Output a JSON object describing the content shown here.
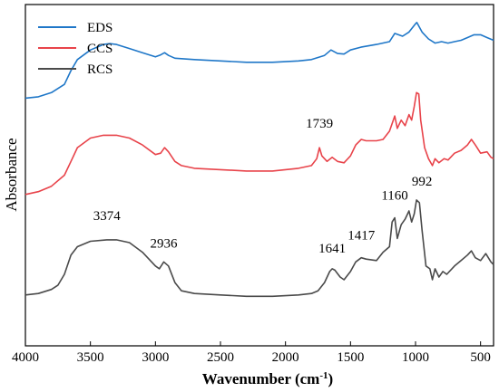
{
  "chart_data": {
    "type": "line",
    "xlabel": "Wavenumber (cm",
    "xlabel_sup": "-1",
    "xlabel_tail": ")",
    "ylabel": "Absorbance",
    "xlim": [
      4000,
      400
    ],
    "x_ticks": [
      4000,
      3500,
      3000,
      2500,
      2000,
      1500,
      1000,
      500
    ],
    "x_tick_labels": [
      "4000",
      "3500",
      "3000",
      "2500",
      "2000",
      "1500",
      "1000",
      "500"
    ],
    "y_ticks_labeled": false,
    "grid": false,
    "legend_position": "top-left",
    "series": [
      {
        "name": "EDS",
        "color": "#1f77c8",
        "points": [
          [
            4000,
            0.78
          ],
          [
            3900,
            0.785
          ],
          [
            3800,
            0.8
          ],
          [
            3700,
            0.83
          ],
          [
            3650,
            0.88
          ],
          [
            3600,
            0.92
          ],
          [
            3500,
            0.955
          ],
          [
            3400,
            0.975
          ],
          [
            3350,
            0.978
          ],
          [
            3300,
            0.975
          ],
          [
            3200,
            0.96
          ],
          [
            3100,
            0.945
          ],
          [
            3000,
            0.93
          ],
          [
            2960,
            0.937
          ],
          [
            2930,
            0.945
          ],
          [
            2900,
            0.935
          ],
          [
            2850,
            0.925
          ],
          [
            2700,
            0.92
          ],
          [
            2500,
            0.915
          ],
          [
            2300,
            0.91
          ],
          [
            2100,
            0.91
          ],
          [
            1900,
            0.915
          ],
          [
            1800,
            0.92
          ],
          [
            1700,
            0.935
          ],
          [
            1650,
            0.955
          ],
          [
            1600,
            0.942
          ],
          [
            1550,
            0.94
          ],
          [
            1500,
            0.955
          ],
          [
            1420,
            0.965
          ],
          [
            1300,
            0.975
          ],
          [
            1200,
            0.985
          ],
          [
            1160,
            1.015
          ],
          [
            1100,
            1.005
          ],
          [
            1050,
            1.02
          ],
          [
            1000,
            1.05
          ],
          [
            990,
            1.055
          ],
          [
            950,
            1.02
          ],
          [
            900,
            0.995
          ],
          [
            850,
            0.98
          ],
          [
            800,
            0.985
          ],
          [
            750,
            0.98
          ],
          [
            700,
            0.985
          ],
          [
            650,
            0.99
          ],
          [
            600,
            1.0
          ],
          [
            550,
            1.01
          ],
          [
            500,
            1.01
          ],
          [
            450,
            1.0
          ],
          [
            400,
            0.99
          ]
        ]
      },
      {
        "name": "CCS",
        "color": "#e8434a",
        "points": [
          [
            4000,
            0.43
          ],
          [
            3900,
            0.44
          ],
          [
            3800,
            0.46
          ],
          [
            3700,
            0.5
          ],
          [
            3650,
            0.55
          ],
          [
            3600,
            0.6
          ],
          [
            3500,
            0.635
          ],
          [
            3400,
            0.645
          ],
          [
            3300,
            0.645
          ],
          [
            3200,
            0.635
          ],
          [
            3100,
            0.61
          ],
          [
            3000,
            0.575
          ],
          [
            2960,
            0.58
          ],
          [
            2930,
            0.6
          ],
          [
            2900,
            0.585
          ],
          [
            2850,
            0.55
          ],
          [
            2800,
            0.535
          ],
          [
            2700,
            0.525
          ],
          [
            2500,
            0.52
          ],
          [
            2300,
            0.515
          ],
          [
            2100,
            0.515
          ],
          [
            1900,
            0.525
          ],
          [
            1800,
            0.535
          ],
          [
            1760,
            0.56
          ],
          [
            1739,
            0.6
          ],
          [
            1720,
            0.57
          ],
          [
            1680,
            0.55
          ],
          [
            1641,
            0.565
          ],
          [
            1600,
            0.55
          ],
          [
            1550,
            0.545
          ],
          [
            1500,
            0.57
          ],
          [
            1460,
            0.61
          ],
          [
            1417,
            0.63
          ],
          [
            1380,
            0.625
          ],
          [
            1300,
            0.625
          ],
          [
            1250,
            0.63
          ],
          [
            1200,
            0.66
          ],
          [
            1160,
            0.715
          ],
          [
            1140,
            0.67
          ],
          [
            1110,
            0.7
          ],
          [
            1080,
            0.68
          ],
          [
            1050,
            0.72
          ],
          [
            1030,
            0.7
          ],
          [
            1010,
            0.75
          ],
          [
            992,
            0.8
          ],
          [
            975,
            0.795
          ],
          [
            960,
            0.7
          ],
          [
            930,
            0.6
          ],
          [
            900,
            0.56
          ],
          [
            870,
            0.535
          ],
          [
            850,
            0.56
          ],
          [
            820,
            0.545
          ],
          [
            780,
            0.56
          ],
          [
            750,
            0.555
          ],
          [
            700,
            0.58
          ],
          [
            650,
            0.59
          ],
          [
            600,
            0.61
          ],
          [
            570,
            0.63
          ],
          [
            540,
            0.61
          ],
          [
            500,
            0.58
          ],
          [
            450,
            0.585
          ],
          [
            420,
            0.565
          ],
          [
            400,
            0.56
          ]
        ]
      },
      {
        "name": "RCS",
        "color": "#4a4a4a",
        "points": [
          [
            4000,
            0.065
          ],
          [
            3900,
            0.07
          ],
          [
            3800,
            0.085
          ],
          [
            3750,
            0.1
          ],
          [
            3700,
            0.14
          ],
          [
            3650,
            0.21
          ],
          [
            3600,
            0.24
          ],
          [
            3500,
            0.26
          ],
          [
            3374,
            0.265
          ],
          [
            3300,
            0.265
          ],
          [
            3200,
            0.255
          ],
          [
            3100,
            0.22
          ],
          [
            3000,
            0.17
          ],
          [
            2970,
            0.16
          ],
          [
            2936,
            0.185
          ],
          [
            2900,
            0.17
          ],
          [
            2850,
            0.11
          ],
          [
            2800,
            0.08
          ],
          [
            2700,
            0.07
          ],
          [
            2500,
            0.065
          ],
          [
            2300,
            0.06
          ],
          [
            2100,
            0.06
          ],
          [
            1900,
            0.065
          ],
          [
            1800,
            0.07
          ],
          [
            1750,
            0.08
          ],
          [
            1700,
            0.11
          ],
          [
            1660,
            0.15
          ],
          [
            1641,
            0.16
          ],
          [
            1620,
            0.155
          ],
          [
            1580,
            0.13
          ],
          [
            1550,
            0.12
          ],
          [
            1500,
            0.15
          ],
          [
            1460,
            0.185
          ],
          [
            1417,
            0.2
          ],
          [
            1380,
            0.195
          ],
          [
            1300,
            0.19
          ],
          [
            1250,
            0.22
          ],
          [
            1200,
            0.24
          ],
          [
            1180,
            0.33
          ],
          [
            1160,
            0.345
          ],
          [
            1140,
            0.27
          ],
          [
            1110,
            0.32
          ],
          [
            1080,
            0.34
          ],
          [
            1050,
            0.37
          ],
          [
            1030,
            0.33
          ],
          [
            1010,
            0.36
          ],
          [
            992,
            0.41
          ],
          [
            970,
            0.4
          ],
          [
            950,
            0.3
          ],
          [
            920,
            0.17
          ],
          [
            890,
            0.16
          ],
          [
            870,
            0.12
          ],
          [
            850,
            0.16
          ],
          [
            820,
            0.13
          ],
          [
            790,
            0.15
          ],
          [
            760,
            0.14
          ],
          [
            700,
            0.17
          ],
          [
            650,
            0.19
          ],
          [
            600,
            0.21
          ],
          [
            570,
            0.225
          ],
          [
            540,
            0.2
          ],
          [
            500,
            0.19
          ],
          [
            460,
            0.215
          ],
          [
            420,
            0.185
          ],
          [
            400,
            0.175
          ]
        ]
      }
    ],
    "annotations": [
      {
        "text": "3374",
        "x": 3374,
        "y": 0.265
      },
      {
        "text": "2936",
        "x": 2936,
        "y": 0.185
      },
      {
        "text": "1739",
        "x": 1739,
        "y": 0.6
      },
      {
        "text": "1641",
        "x": 1641,
        "y": 0.16
      },
      {
        "text": "1417",
        "x": 1417,
        "y": 0.2
      },
      {
        "text": "1160",
        "x": 1160,
        "y": 0.345
      },
      {
        "text": "992",
        "x": 992,
        "y": 0.41
      }
    ]
  }
}
